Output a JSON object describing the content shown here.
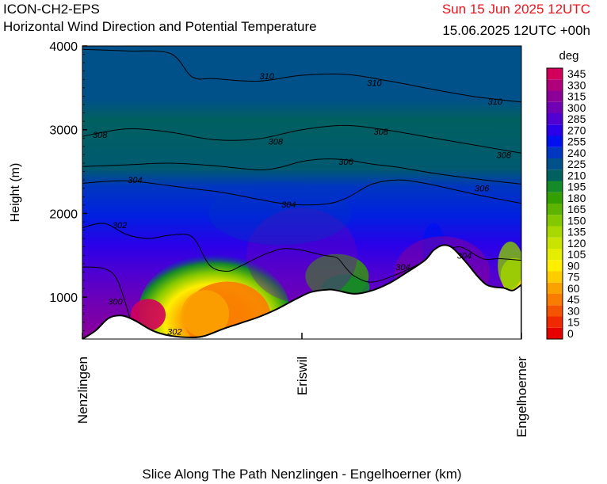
{
  "header": {
    "model": "ICON-CH2-EPS",
    "product": "Horizontal Wind Direction and Potential Temperature",
    "valid_time": "Sun 15 Jun 2025 12UTC",
    "run_info": "15.06.2025 12UTC +00h"
  },
  "chart_data": {
    "type": "heatmap",
    "title": "Horizontal Wind Direction and Potential Temperature",
    "xlabel": "Slice Along The Path Nenzlingen - Engelhoerner (km)",
    "ylabel": "Height (m)",
    "ylim": [
      500,
      4000
    ],
    "y_ticks": [
      1000,
      2000,
      3000,
      4000
    ],
    "x_ticks": [
      "Nenzlingen",
      "Eriswil",
      "Engelhoerner"
    ],
    "x_ticks_pos": [
      0,
      0.5,
      1
    ],
    "colorbar": {
      "title": "deg",
      "levels": [
        0,
        15,
        30,
        45,
        60,
        75,
        90,
        105,
        120,
        135,
        150,
        165,
        180,
        195,
        210,
        225,
        240,
        255,
        270,
        285,
        300,
        315,
        330,
        345
      ],
      "colors": [
        "#e60000",
        "#ef2a00",
        "#f45400",
        "#f87c00",
        "#fca200",
        "#ffcc00",
        "#ffee00",
        "#e4ed00",
        "#c8e400",
        "#a8d800",
        "#84c800",
        "#5cb400",
        "#34a000",
        "#158a28",
        "#006060",
        "#00508a",
        "#0036c0",
        "#0010f0",
        "#2a00e8",
        "#5000d0",
        "#7000b4",
        "#8c0098",
        "#b0007c",
        "#d2005a"
      ]
    },
    "terrain": {
      "x": [
        0,
        0.03,
        0.06,
        0.09,
        0.12,
        0.16,
        0.2,
        0.25,
        0.28,
        0.32,
        0.36,
        0.4,
        0.44,
        0.48,
        0.52,
        0.56,
        0.58,
        0.62,
        0.66,
        0.7,
        0.74,
        0.78,
        0.8,
        0.82,
        0.84,
        0.86,
        0.88,
        0.9,
        0.92,
        0.94,
        0.96,
        0.98,
        1.0
      ],
      "height_m": [
        500,
        600,
        750,
        780,
        720,
        600,
        540,
        520,
        540,
        620,
        690,
        760,
        850,
        960,
        1060,
        1090,
        1080,
        1040,
        1080,
        1170,
        1300,
        1440,
        1560,
        1620,
        1600,
        1500,
        1380,
        1250,
        1150,
        1120,
        1110,
        1080,
        1150
      ]
    },
    "theta_contours": [
      {
        "label": "300",
        "x": [
          0,
          0.05,
          0.08,
          0.11
        ],
        "height_m": [
          1360,
          1340,
          1200,
          720
        ]
      },
      {
        "label": "302",
        "x": [
          0,
          0.05,
          0.1,
          0.15,
          0.2,
          0.25,
          0.29,
          0.33,
          0.36,
          0.39,
          0.41,
          0.43,
          0.46,
          0.5,
          0.55,
          0.58,
          0.6,
          0.62,
          0.66,
          0.72,
          0.78,
          0.82,
          0.86,
          0.9,
          0.92,
          0.95,
          1.0
        ],
        "height_m": [
          1830,
          1880,
          1750,
          1700,
          1740,
          1720,
          1380,
          1310,
          1370,
          1450,
          1500,
          1540,
          1580,
          1560,
          1500,
          1470,
          1350,
          1250,
          1180,
          1280,
          1430,
          1540,
          1600,
          1490,
          1450,
          1460,
          1440
        ]
      },
      {
        "label": "304",
        "x": [
          0,
          0.1,
          0.2,
          0.26,
          0.32,
          0.4,
          0.47,
          0.55,
          0.6,
          0.66,
          0.72,
          0.78,
          0.85,
          0.92,
          1.0
        ],
        "height_m": [
          2360,
          2390,
          2330,
          2290,
          2250,
          2170,
          2110,
          2110,
          2180,
          2350,
          2400,
          2360,
          2280,
          2200,
          2120
        ]
      },
      {
        "label": "306",
        "x": [
          0,
          0.1,
          0.2,
          0.3,
          0.4,
          0.45,
          0.5,
          0.55,
          0.6,
          0.66,
          0.72,
          0.8,
          0.9,
          1.0
        ],
        "height_m": [
          2560,
          2580,
          2600,
          2570,
          2520,
          2550,
          2620,
          2650,
          2640,
          2590,
          2550,
          2480,
          2410,
          2350
        ]
      },
      {
        "label": "308",
        "x": [
          0,
          0.1,
          0.2,
          0.3,
          0.4,
          0.5,
          0.6,
          0.7,
          0.8,
          0.9,
          1.0
        ],
        "height_m": [
          2920,
          3010,
          2970,
          2880,
          2890,
          3000,
          3050,
          2990,
          2900,
          2810,
          2720
        ]
      },
      {
        "label": "310",
        "x": [
          0,
          0.1,
          0.2,
          0.25,
          0.3,
          0.4,
          0.5,
          0.6,
          0.7,
          0.8,
          0.9,
          1.0
        ],
        "height_m": [
          3960,
          3940,
          3910,
          3630,
          3610,
          3580,
          3650,
          3660,
          3580,
          3480,
          3390,
          3330
        ]
      }
    ],
    "contour_labels": [
      {
        "text": "310",
        "x": 0.42,
        "height_m": 3640
      },
      {
        "text": "310",
        "x": 0.665,
        "height_m": 3560
      },
      {
        "text": "310",
        "x": 0.94,
        "height_m": 3340
      },
      {
        "text": "308",
        "x": 0.04,
        "height_m": 2940
      },
      {
        "text": "308",
        "x": 0.44,
        "height_m": 2860
      },
      {
        "text": "308",
        "x": 0.68,
        "height_m": 2980
      },
      {
        "text": "308",
        "x": 0.96,
        "height_m": 2700
      },
      {
        "text": "306",
        "x": 0.6,
        "height_m": 2620
      },
      {
        "text": "306",
        "x": 0.91,
        "height_m": 2300
      },
      {
        "text": "304",
        "x": 0.12,
        "height_m": 2400
      },
      {
        "text": "304",
        "x": 0.47,
        "height_m": 2110
      },
      {
        "text": "304",
        "x": 0.73,
        "height_m": 1360
      },
      {
        "text": "304",
        "x": 0.87,
        "height_m": 1500
      },
      {
        "text": "302",
        "x": 0.085,
        "height_m": 1860
      },
      {
        "text": "302",
        "x": 0.21,
        "height_m": 590
      },
      {
        "text": "300",
        "x": 0.075,
        "height_m": 950
      }
    ]
  }
}
